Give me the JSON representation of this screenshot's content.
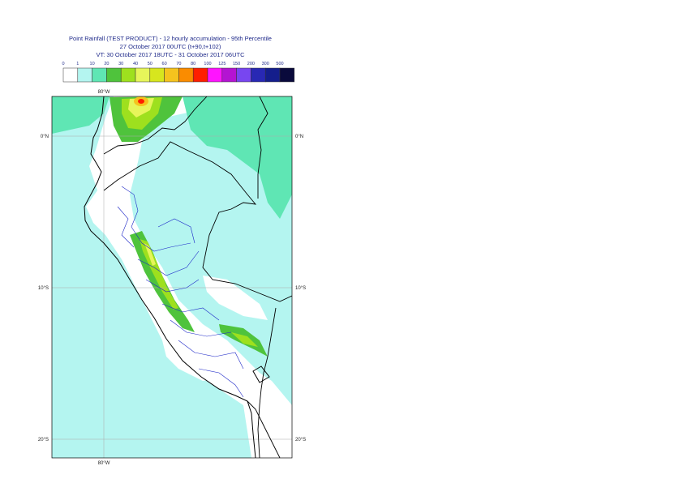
{
  "title": {
    "line1": "Point Rainfall (TEST PRODUCT) - 12 hourly accumulation - 95th Percentile",
    "line2": "27 October 2017 00UTC (t+90,t+102)",
    "line3": "VT: 30 October 2017 18UTC - 31 October 2017 06UTC"
  },
  "legend": {
    "thresholds": [
      "0",
      "1",
      "10",
      "20",
      "30",
      "40",
      "50",
      "60",
      "70",
      "80",
      "100",
      "125",
      "150",
      "200",
      "300",
      "500"
    ],
    "colors": [
      "#ffffff",
      "#b4f5f0",
      "#5fe6b4",
      "#4fc33c",
      "#9ee01e",
      "#e6f55a",
      "#d7e61e",
      "#f5c31e",
      "#fa8c00",
      "#ff1e00",
      "#ff14ff",
      "#b414d2",
      "#7846f0",
      "#2828b4",
      "#141e8c",
      "#0a0a3c"
    ]
  },
  "map": {
    "lon_labels": {
      "top": "80°W",
      "bottom": "80°W"
    },
    "lat_labels": [
      "0°N",
      "10°S",
      "20°S"
    ],
    "colors": {
      "ocean_light": "#b4f5f0",
      "moderate": "#5fe6b4",
      "green": "#4fc33c",
      "lime": "#9ee01e",
      "yellow": "#e6f55a",
      "orange": "#f5c31e",
      "red": "#ff1e00",
      "coast": "#000000",
      "border": "#1e28c8"
    }
  }
}
